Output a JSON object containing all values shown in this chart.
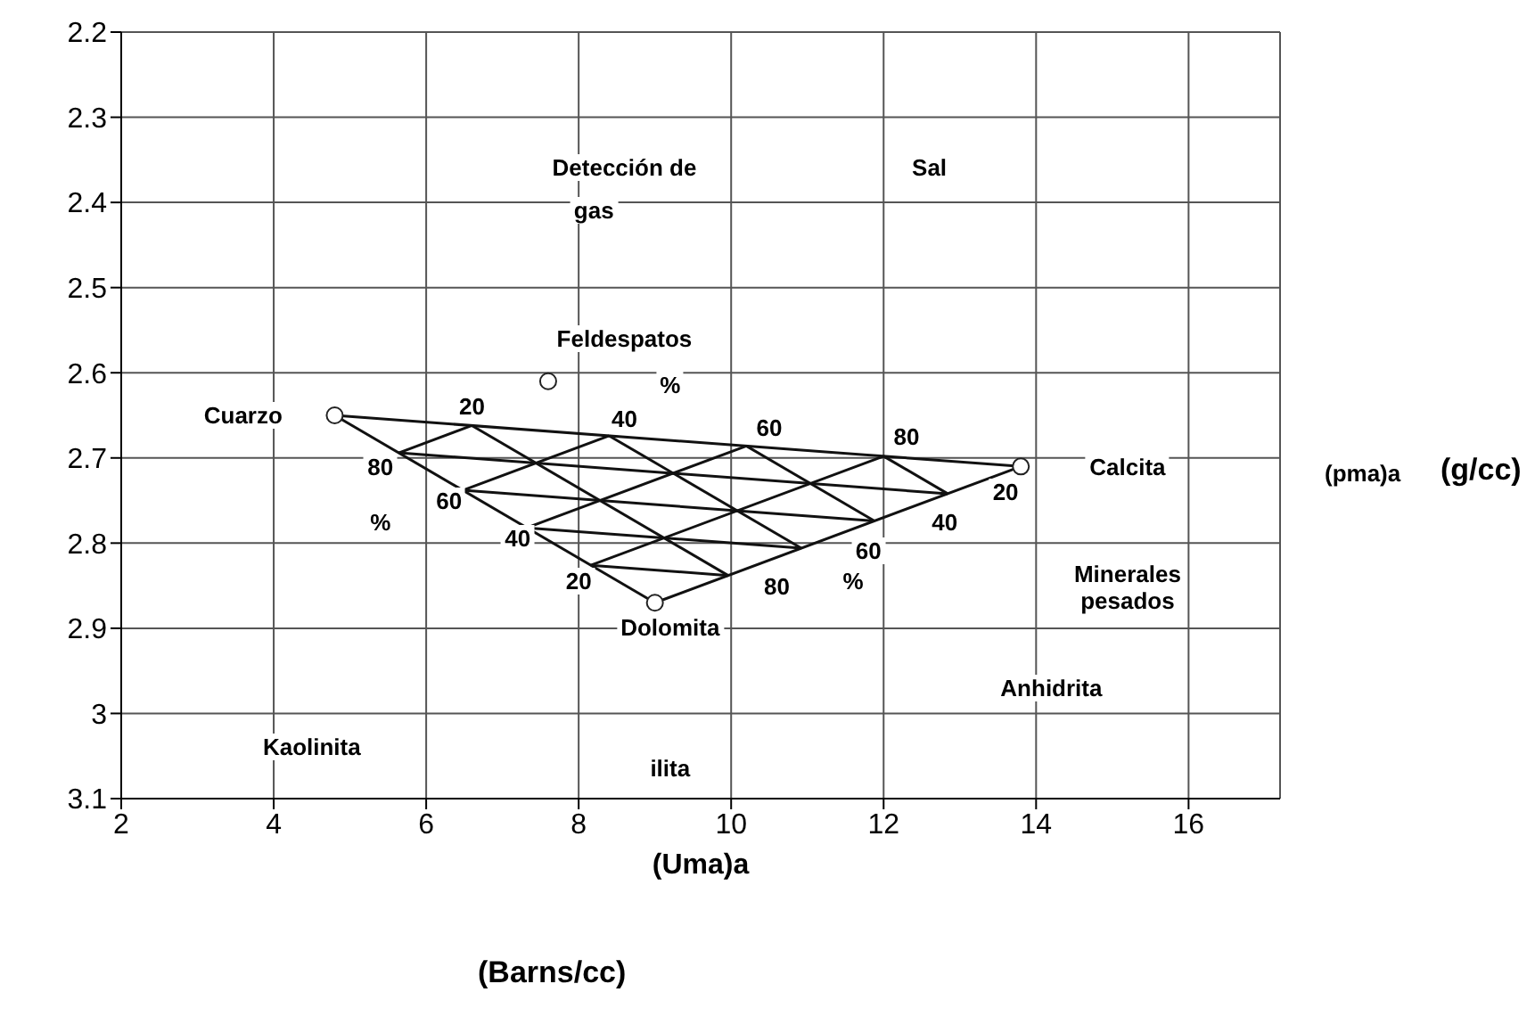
{
  "chart_data": {
    "type": "scatter",
    "xlabel": "(Uma)a",
    "ylabel": "(pma)a",
    "xlim": [
      2,
      17.2
    ],
    "xticks": [
      2,
      4,
      6,
      8,
      10,
      12,
      14,
      16
    ],
    "ylim": [
      3.1,
      2.2
    ],
    "yticks": [
      2.2,
      2.3,
      2.4,
      2.5,
      2.6,
      {
        "value": 2.7,
        "label": "2.7"
      },
      2.8,
      2.9,
      {
        "value": 3,
        "label": "3"
      },
      3.1
    ],
    "grid": true,
    "series": [
      {
        "color": "#222222",
        "marker": "circle",
        "x": [
          4.8,
          13.8,
          9.0,
          7.6
        ],
        "values": [
          2.65,
          2.71,
          2.87,
          2.61
        ]
      },
      {
        "type": "line",
        "marker": "none",
        "color": "#111111",
        "x": [
          4.8,
          13.8
        ],
        "values": [
          2.65,
          2.71
        ]
      },
      {
        "type": "line",
        "marker": "none",
        "color": "#111111",
        "x": [
          13.8,
          9.0
        ],
        "values": [
          2.71,
          2.87
        ]
      },
      {
        "type": "line",
        "marker": "none",
        "color": "#111111",
        "x": [
          4.8,
          9.0
        ],
        "values": [
          2.65,
          2.87
        ]
      },
      {
        "type": "line",
        "marker": "none",
        "color": "#111111",
        "x": [
          5.64,
          12.84
        ],
        "values": [
          2.694,
          2.742
        ]
      },
      {
        "type": "line",
        "marker": "none",
        "color": "#111111",
        "x": [
          6.48,
          11.88
        ],
        "values": [
          2.738,
          2.774
        ]
      },
      {
        "type": "line",
        "marker": "none",
        "color": "#111111",
        "x": [
          7.32,
          10.92
        ],
        "values": [
          2.782,
          2.806
        ]
      },
      {
        "type": "line",
        "marker": "none",
        "color": "#111111",
        "x": [
          8.16,
          9.96
        ],
        "values": [
          2.826,
          2.838
        ]
      },
      {
        "type": "line",
        "marker": "none",
        "color": "#111111",
        "x": [
          6.6,
          9.96
        ],
        "values": [
          2.662,
          2.838
        ]
      },
      {
        "type": "line",
        "marker": "none",
        "color": "#111111",
        "x": [
          8.4,
          10.92
        ],
        "values": [
          2.674,
          2.806
        ]
      },
      {
        "type": "line",
        "marker": "none",
        "color": "#111111",
        "x": [
          10.2,
          11.88
        ],
        "values": [
          2.686,
          2.774
        ]
      },
      {
        "type": "line",
        "marker": "none",
        "color": "#111111",
        "x": [
          12,
          12.84
        ],
        "values": [
          2.698,
          2.742
        ]
      },
      {
        "type": "line",
        "marker": "none",
        "color": "#111111",
        "x": [
          8.16,
          12
        ],
        "values": [
          2.826,
          2.698
        ]
      },
      {
        "type": "line",
        "marker": "none",
        "color": "#111111",
        "x": [
          7.32,
          10.2
        ],
        "values": [
          2.782,
          2.686
        ]
      },
      {
        "type": "line",
        "marker": "none",
        "color": "#111111",
        "x": [
          6.48,
          8.4
        ],
        "values": [
          2.738,
          2.674
        ]
      },
      {
        "type": "line",
        "marker": "none",
        "color": "#111111",
        "x": [
          5.64,
          6.6
        ],
        "values": [
          2.694,
          2.662
        ]
      }
    ],
    "annotations": [
      "Cuarzo",
      "Calcita",
      "Dolomita",
      "Feldespatos",
      "Detección de",
      "gas",
      "Sal",
      "Minerales",
      "pesados",
      "Anhidrita",
      "Kaolinita",
      "ilita",
      "20",
      "40",
      "60",
      "80",
      "%",
      "20",
      "40",
      "60",
      "80",
      "%",
      "80",
      "60",
      "40",
      "20",
      "%",
      "(Barns/cc)",
      "(g/cc)"
    ]
  }
}
